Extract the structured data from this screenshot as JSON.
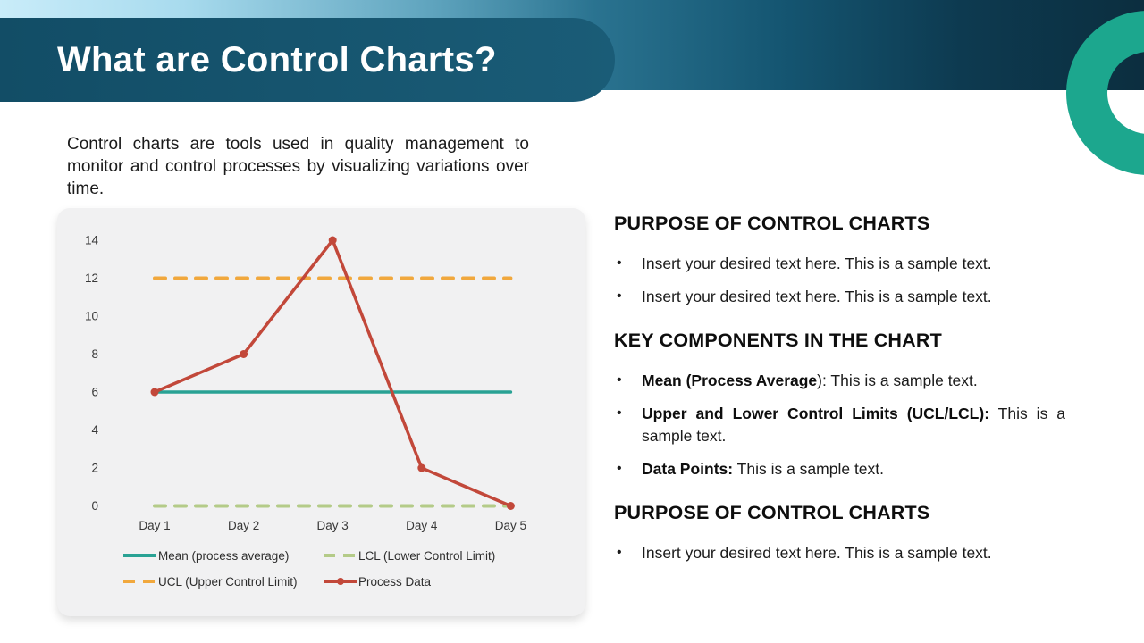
{
  "slide": {
    "title": "What are Control Charts?",
    "intro": "Control charts are tools used in quality management to monitor and control processes by visualizing variations over time."
  },
  "theme": {
    "banner_blue": "#17566F",
    "band_gradient_start": "#C9ECF9",
    "band_gradient_end": "#0C2E3F",
    "ring_teal": "#1CA78E",
    "card_background": "#F1F1F2"
  },
  "chart_data": {
    "type": "line",
    "title": "",
    "xlabel": "",
    "ylabel": "",
    "x": [
      "Day 1",
      "Day 2",
      "Day 3",
      "Day 4",
      "Day 5"
    ],
    "series": [
      {
        "id": "mean",
        "name": "Mean (process average)",
        "values": [
          6,
          6,
          6,
          6,
          6
        ],
        "color": "#29A294",
        "style": "solid",
        "markers": false
      },
      {
        "id": "ucl",
        "name": "UCL (Upper Control Limit)",
        "values": [
          12,
          12,
          12,
          12,
          12
        ],
        "color": "#F1A83D",
        "style": "dashed",
        "markers": false
      },
      {
        "id": "lcl",
        "name": "LCL (Lower Control Limit)",
        "values": [
          0,
          0,
          0,
          0,
          0
        ],
        "color": "#B4CB88",
        "style": "dashed",
        "markers": false
      },
      {
        "id": "process",
        "name": "Process Data",
        "values": [
          6,
          8,
          14,
          2,
          0
        ],
        "color": "#C2483A",
        "style": "solid",
        "markers": true
      }
    ],
    "ylim": [
      0,
      14
    ],
    "yticks": [
      0,
      2,
      4,
      6,
      8,
      10,
      12,
      14
    ],
    "grid": false,
    "legend_position": "bottom"
  },
  "sections": [
    {
      "heading": "PURPOSE OF CONTROL CHARTS",
      "bullets": [
        {
          "bold": "",
          "text": "Insert your desired text here. This is a sample text."
        },
        {
          "bold": "",
          "text": "Insert your desired text here. This is a sample text."
        }
      ]
    },
    {
      "heading": "KEY COMPONENTS IN THE CHART",
      "bullets": [
        {
          "bold": "Mean (Process Average",
          "text": "): This is a sample text."
        },
        {
          "bold": "Upper and Lower Control Limits (UCL/LCL):",
          "text": " This is a sample text."
        },
        {
          "bold": "Data Points:",
          "text": " This is a sample text."
        }
      ]
    },
    {
      "heading": "PURPOSE OF CONTROL CHARTS",
      "bullets": [
        {
          "bold": "",
          "text": "Insert your desired text here. This is a sample text."
        }
      ]
    }
  ]
}
